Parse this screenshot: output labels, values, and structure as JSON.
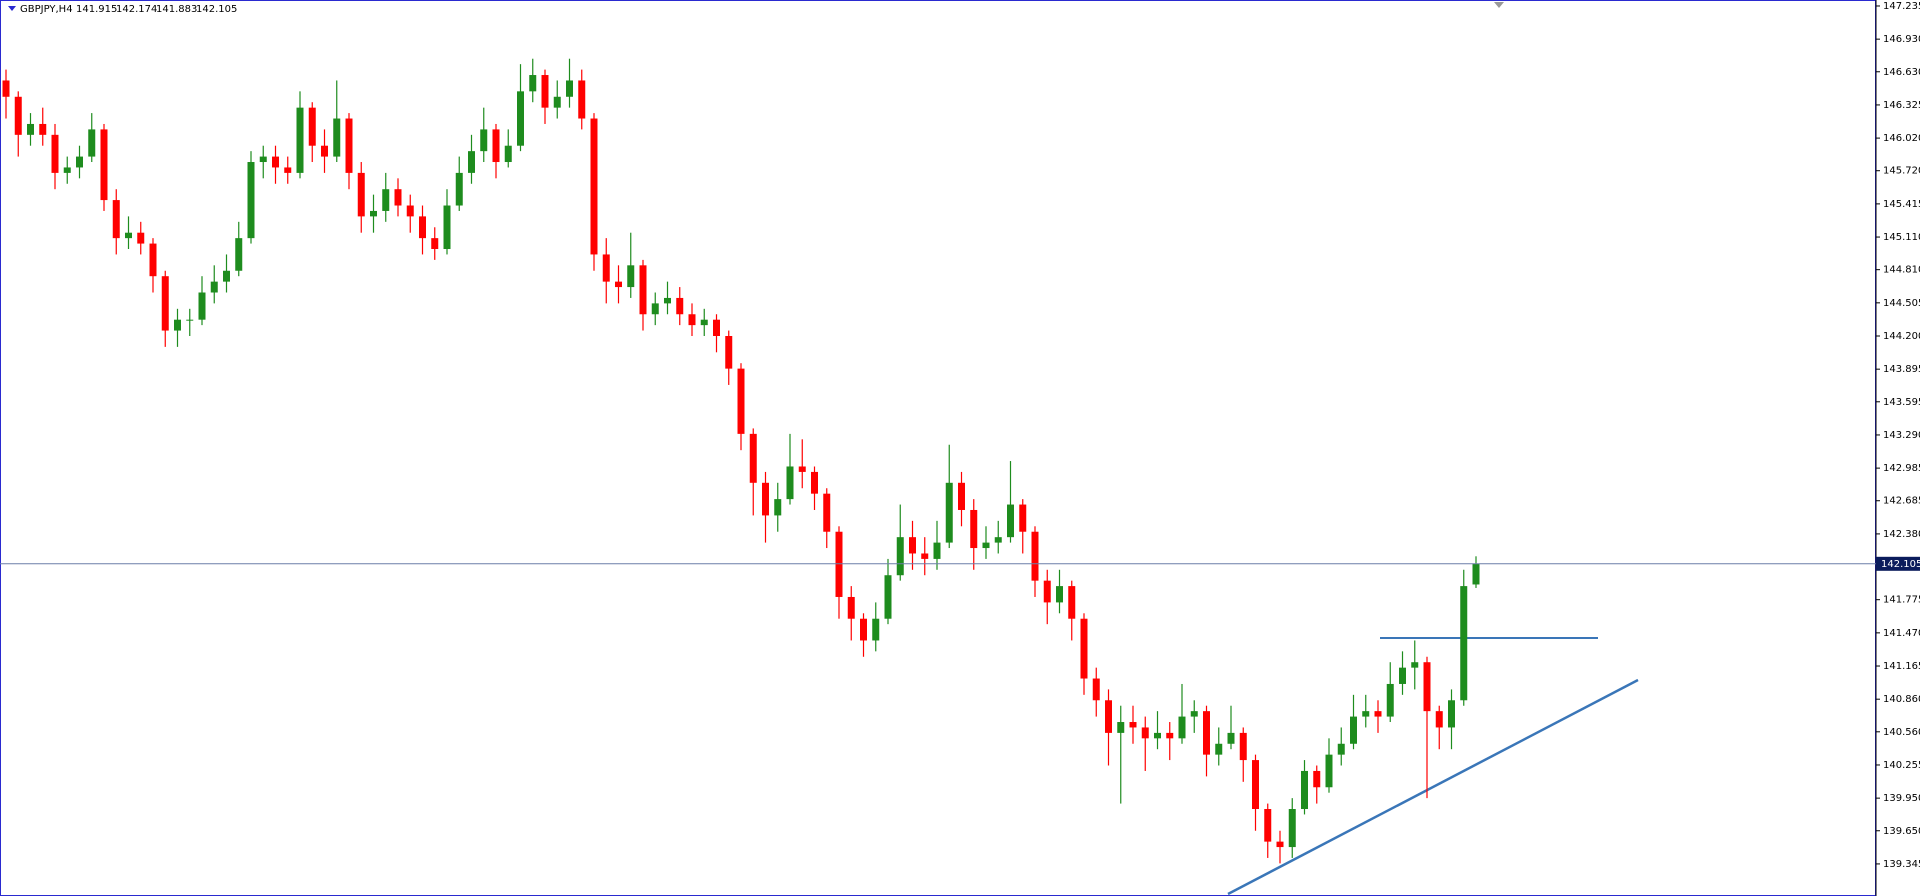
{
  "chart_data": {
    "type": "candlestick",
    "symbol": "GBPJPY,H4",
    "open": [
      146.55,
      146.4,
      146.05,
      146.15,
      146.05,
      145.7,
      145.75,
      145.85,
      146.1,
      145.45,
      145.1,
      145.15,
      145.05,
      144.75,
      144.25,
      144.35,
      144.35,
      144.6,
      144.7,
      144.8,
      145.1,
      145.8,
      145.85,
      145.75,
      145.7,
      146.3,
      145.95,
      145.85,
      146.2,
      145.7,
      145.3,
      145.35,
      145.55,
      145.4,
      145.3,
      145.1,
      145.0,
      145.4,
      145.7,
      145.9,
      146.1,
      145.8,
      145.95,
      146.45,
      146.6,
      146.3,
      146.4,
      146.55,
      146.2,
      144.95,
      144.7,
      144.65,
      144.85,
      144.4,
      144.5,
      144.55,
      144.4,
      144.3,
      144.35,
      144.2,
      143.9,
      143.3,
      142.85,
      142.55,
      142.7,
      143.0,
      142.95,
      142.75,
      142.4,
      141.8,
      141.6,
      141.4,
      141.6,
      142.0,
      142.35,
      142.2,
      142.15,
      142.3,
      142.85,
      142.6,
      142.25,
      142.3,
      142.35,
      142.65,
      142.4,
      141.95,
      141.75,
      141.9,
      141.6,
      141.05,
      140.85,
      140.55,
      140.65,
      140.6,
      140.5,
      140.55,
      140.5,
      140.7,
      140.75,
      140.35,
      140.45,
      140.55,
      140.3,
      139.85,
      139.55,
      139.5,
      139.85,
      140.2,
      140.05,
      140.35,
      140.45,
      140.7,
      140.75,
      140.7,
      141.0,
      141.15,
      141.2,
      140.75,
      140.6,
      140.85,
      141.915
    ],
    "high": [
      146.65,
      146.45,
      146.25,
      146.3,
      146.15,
      145.85,
      145.95,
      146.25,
      146.15,
      145.55,
      145.3,
      145.25,
      145.1,
      144.8,
      144.45,
      144.45,
      144.75,
      144.85,
      144.95,
      145.25,
      145.9,
      145.95,
      145.95,
      145.85,
      146.45,
      146.35,
      146.1,
      146.55,
      146.25,
      145.8,
      145.5,
      145.7,
      145.65,
      145.5,
      145.4,
      145.2,
      145.55,
      145.85,
      146.05,
      146.3,
      146.15,
      146.1,
      146.7,
      146.75,
      146.65,
      146.55,
      146.75,
      146.65,
      146.25,
      145.1,
      144.85,
      145.15,
      144.9,
      144.6,
      144.7,
      144.65,
      144.5,
      144.45,
      144.4,
      144.25,
      143.95,
      143.35,
      142.95,
      142.85,
      143.3,
      143.25,
      143.0,
      142.8,
      142.45,
      141.9,
      141.65,
      141.75,
      142.15,
      142.65,
      142.5,
      142.35,
      142.5,
      143.2,
      142.95,
      142.7,
      142.45,
      142.5,
      143.05,
      142.7,
      142.45,
      142.05,
      142.05,
      141.95,
      141.65,
      141.15,
      140.95,
      140.8,
      140.8,
      140.7,
      140.75,
      140.65,
      141.0,
      140.85,
      140.8,
      140.6,
      140.8,
      140.6,
      140.35,
      139.9,
      139.65,
      139.95,
      140.3,
      140.25,
      140.5,
      140.6,
      140.9,
      140.9,
      140.85,
      141.2,
      141.3,
      141.4,
      141.25,
      140.8,
      140.95,
      142.05,
      142.174
    ],
    "low": [
      146.2,
      145.85,
      145.95,
      145.95,
      145.55,
      145.6,
      145.65,
      145.8,
      145.35,
      144.95,
      145.0,
      144.95,
      144.6,
      144.1,
      144.1,
      144.2,
      144.3,
      144.5,
      144.6,
      144.75,
      145.05,
      145.65,
      145.6,
      145.6,
      145.65,
      145.8,
      145.7,
      145.8,
      145.55,
      145.15,
      145.15,
      145.25,
      145.3,
      145.15,
      144.95,
      144.9,
      144.95,
      145.35,
      145.6,
      145.8,
      145.65,
      145.75,
      145.9,
      146.35,
      146.15,
      146.2,
      146.3,
      146.1,
      144.8,
      144.5,
      144.5,
      144.55,
      144.25,
      144.3,
      144.4,
      144.3,
      144.2,
      144.2,
      144.05,
      143.75,
      143.15,
      142.55,
      142.3,
      142.4,
      142.65,
      142.8,
      142.6,
      142.25,
      141.6,
      141.4,
      141.25,
      141.3,
      141.55,
      141.95,
      142.05,
      142.0,
      142.05,
      142.25,
      142.45,
      142.05,
      142.15,
      142.2,
      142.3,
      142.2,
      141.8,
      141.55,
      141.65,
      141.4,
      140.9,
      140.7,
      140.25,
      139.9,
      140.45,
      140.2,
      140.4,
      140.3,
      140.45,
      140.55,
      140.15,
      140.25,
      140.4,
      140.1,
      139.65,
      139.4,
      139.35,
      139.4,
      139.8,
      139.9,
      140.0,
      140.25,
      140.4,
      140.6,
      140.55,
      140.65,
      140.9,
      140.95,
      139.95,
      140.4,
      140.4,
      140.8,
      141.883
    ],
    "close": [
      146.4,
      146.05,
      146.15,
      146.05,
      145.7,
      145.75,
      145.85,
      146.1,
      145.45,
      145.1,
      145.15,
      145.05,
      144.75,
      144.25,
      144.35,
      144.35,
      144.6,
      144.7,
      144.8,
      145.1,
      145.8,
      145.85,
      145.75,
      145.7,
      146.3,
      145.95,
      145.85,
      146.2,
      145.7,
      145.3,
      145.35,
      145.55,
      145.4,
      145.3,
      145.1,
      145.0,
      145.4,
      145.7,
      145.9,
      146.1,
      145.8,
      145.95,
      146.45,
      146.6,
      146.3,
      146.4,
      146.55,
      146.2,
      144.95,
      144.7,
      144.65,
      144.85,
      144.4,
      144.5,
      144.55,
      144.4,
      144.3,
      144.35,
      144.2,
      143.9,
      143.3,
      142.85,
      142.55,
      142.7,
      143.0,
      142.95,
      142.75,
      142.4,
      141.8,
      141.6,
      141.4,
      141.6,
      142.0,
      142.35,
      142.2,
      142.15,
      142.3,
      142.85,
      142.6,
      142.25,
      142.3,
      142.35,
      142.65,
      142.4,
      141.95,
      141.75,
      141.9,
      141.6,
      141.05,
      140.85,
      140.55,
      140.65,
      140.6,
      140.5,
      140.55,
      140.5,
      140.7,
      140.75,
      140.35,
      140.45,
      140.55,
      140.3,
      139.85,
      139.55,
      139.5,
      139.85,
      140.2,
      140.05,
      140.35,
      140.45,
      140.7,
      140.75,
      140.7,
      141.0,
      141.15,
      141.2,
      140.75,
      140.6,
      140.85,
      141.9,
      142.105
    ],
    "up_color": "#1e8c1e",
    "down_color": "#ff0000",
    "ylim": [
      139.05,
      147.29
    ],
    "yticks": [
      147.235,
      {
        "value": 146.93,
        "label": "146.930"
      },
      {
        "value": 146.63,
        "label": "146.630"
      },
      146.325,
      {
        "value": 146.02,
        "label": "146.020"
      },
      {
        "value": 145.72,
        "label": "145.720"
      },
      145.415,
      {
        "value": 145.11,
        "label": "145.110"
      },
      {
        "value": 144.81,
        "label": "144.810"
      },
      144.505,
      {
        "value": 144.2,
        "label": "144.200"
      },
      143.895,
      143.595,
      {
        "value": 143.29,
        "label": "143.290"
      },
      142.985,
      142.685,
      {
        "value": 142.38,
        "label": "142.380"
      },
      141.775,
      {
        "value": 141.47,
        "label": "141.470"
      },
      141.165,
      {
        "value": 140.86,
        "label": "140.860"
      },
      {
        "value": 140.56,
        "label": "140.560"
      },
      140.255,
      {
        "value": 139.95,
        "label": "139.950"
      },
      {
        "value": 139.65,
        "label": "139.650"
      },
      139.345
    ]
  }
}
